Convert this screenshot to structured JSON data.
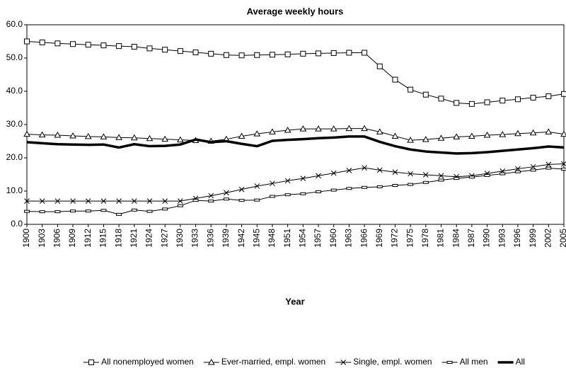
{
  "chart_data": {
    "type": "line",
    "title": "Average weekly hours",
    "x_label": "Year",
    "x": [
      1900,
      1903,
      1906,
      1909,
      1912,
      1915,
      1918,
      1921,
      1924,
      1927,
      1930,
      1933,
      1936,
      1939,
      1942,
      1945,
      1948,
      1951,
      1954,
      1957,
      1960,
      1963,
      1966,
      1969,
      1972,
      1975,
      1978,
      1981,
      1984,
      1987,
      1990,
      1993,
      1996,
      1999,
      2002,
      2005
    ],
    "xlim": [
      1900,
      2005
    ],
    "xticks": [
      1900,
      1903,
      1906,
      1909,
      1912,
      1915,
      1918,
      1921,
      1924,
      1927,
      1930,
      1933,
      1936,
      1939,
      1942,
      1945,
      1948,
      1951,
      1954,
      1957,
      1960,
      1963,
      1966,
      1969,
      1972,
      1975,
      1978,
      1981,
      1984,
      1987,
      1990,
      1993,
      1996,
      1999,
      2002,
      2005
    ],
    "ylim": [
      0,
      60
    ],
    "yticks": [
      {
        "value": 0,
        "label": "0.0"
      },
      {
        "value": 10,
        "label": "10.0"
      },
      {
        "value": 20,
        "label": "20.0"
      },
      {
        "value": 30,
        "label": "30.0"
      },
      {
        "value": 40,
        "label": "40.0"
      },
      {
        "value": 50,
        "label": "50.0"
      },
      {
        "value": 60,
        "label": "60.0"
      }
    ],
    "legend": "bottom",
    "series": [
      {
        "name": "All nonemployed women",
        "color": "#000000",
        "marker": "square",
        "linewidth": 1,
        "values": [
          55,
          54.7,
          54.4,
          54.2,
          54,
          53.8,
          53.6,
          53.4,
          52.9,
          52.5,
          52.1,
          51.7,
          51.3,
          50.9,
          50.8,
          50.9,
          51,
          51.1,
          51.3,
          51.4,
          51.5,
          51.6,
          51.6,
          47.5,
          43.5,
          40.5,
          39,
          37.8,
          36.5,
          36.2,
          36.7,
          37.2,
          37.6,
          38.1,
          38.5,
          39.2
        ]
      },
      {
        "name": "Ever-married, empl. women",
        "color": "#000000",
        "marker": "triangle",
        "linewidth": 1,
        "values": [
          27.1,
          26.9,
          26.8,
          26.6,
          26.4,
          26.3,
          26.1,
          26,
          25.8,
          25.6,
          25.4,
          25.2,
          25,
          25.6,
          26.5,
          27.2,
          27.8,
          28.3,
          28.7,
          28.7,
          28.7,
          28.8,
          28.8,
          27.8,
          26.5,
          25.3,
          25.5,
          25.9,
          26.3,
          26.5,
          26.8,
          27,
          27.3,
          27.5,
          27.8,
          27.1
        ]
      },
      {
        "name": "Single, empl. women",
        "color": "#000000",
        "marker": "x",
        "linewidth": 1,
        "values": [
          7,
          7,
          7,
          7,
          7,
          7,
          7,
          7,
          7,
          7,
          7,
          7.8,
          8.6,
          9.5,
          10.5,
          11.5,
          12.3,
          13.1,
          13.8,
          14.6,
          15.4,
          16.2,
          17,
          16.3,
          15.7,
          15.2,
          14.9,
          14.6,
          14.3,
          14.6,
          15.3,
          16,
          16.7,
          17.3,
          18,
          18.2
        ]
      },
      {
        "name": "All men",
        "color": "#000000",
        "marker": "dash",
        "linewidth": 1,
        "values": [
          3.9,
          3.8,
          3.8,
          4,
          4,
          4.2,
          3,
          4.3,
          3.9,
          4.6,
          5.6,
          7.2,
          7,
          7.6,
          7.2,
          7.3,
          8.4,
          8.9,
          9.2,
          9.8,
          10.3,
          10.8,
          11.1,
          11.3,
          11.7,
          12,
          12.6,
          13.3,
          13.8,
          14.2,
          14.7,
          15.2,
          15.8,
          16.3,
          16.9,
          16.6
        ]
      },
      {
        "name": "All",
        "color": "#000000",
        "marker": "none",
        "linewidth": 3.5,
        "values": [
          24.7,
          24.4,
          24.1,
          24,
          23.9,
          24,
          23.1,
          24.1,
          23.5,
          23.6,
          24,
          25.5,
          24.7,
          25,
          24.2,
          23.5,
          25.1,
          25.4,
          25.6,
          25.9,
          26.1,
          26.4,
          26.4,
          24.8,
          23.5,
          22.5,
          21.9,
          21.6,
          21.3,
          21.4,
          21.7,
          22.1,
          22.5,
          22.9,
          23.4,
          23.1
        ]
      }
    ]
  }
}
